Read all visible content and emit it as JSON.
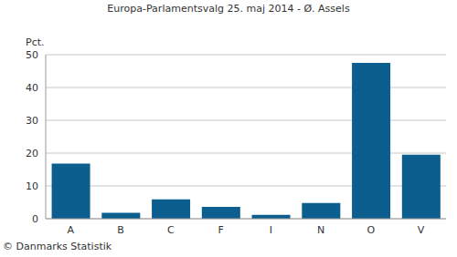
{
  "chart_data": {
    "type": "bar",
    "title": "Europa-Parlamentsvalg 25. maj 2014 - Ø. Assels",
    "ylabel": "Pct.",
    "source": "© Danmarks Statistik",
    "categories": [
      "A",
      "B",
      "C",
      "F",
      "I",
      "N",
      "O",
      "V"
    ],
    "values": [
      16.8,
      1.8,
      5.9,
      3.6,
      1.2,
      4.8,
      47.5,
      19.5
    ],
    "color": "#0b5e8e",
    "ylim": [
      0,
      50
    ],
    "yticks": [
      0,
      10,
      20,
      30,
      40,
      50
    ],
    "grid": true
  }
}
